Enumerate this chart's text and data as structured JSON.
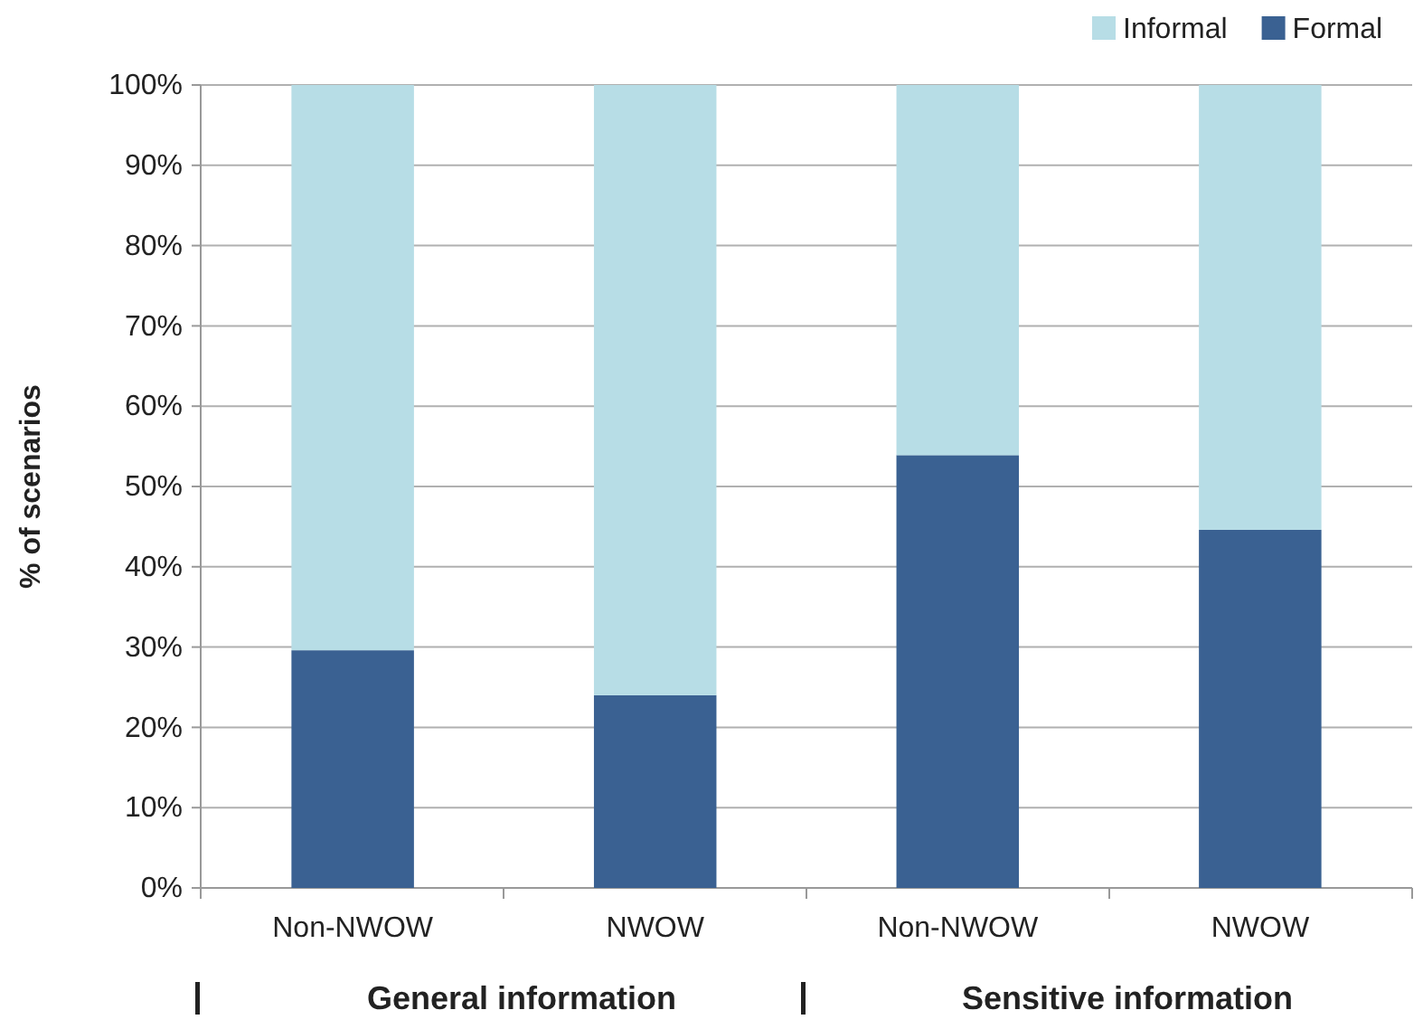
{
  "chart_data": {
    "type": "bar",
    "stacked": true,
    "ylabel": "% of scenarios",
    "categories": [
      "Non-NWOW",
      "NWOW",
      "Non-NWOW",
      "NWOW"
    ],
    "series": [
      {
        "name": "Formal",
        "color": "#3a6192",
        "values": [
          29.6,
          24.0,
          53.9,
          44.6
        ]
      },
      {
        "name": "Informal",
        "color": "#b7dde6",
        "values": [
          70.4,
          76.0,
          46.1,
          55.4
        ]
      }
    ],
    "ylim": [
      0,
      100
    ],
    "yticks": [
      {
        "value": 0,
        "label": "0%"
      },
      {
        "value": 10,
        "label": "10%"
      },
      {
        "value": 20,
        "label": "20%"
      },
      {
        "value": 30,
        "label": "30%"
      },
      {
        "value": 40,
        "label": "40%"
      },
      {
        "value": 50,
        "label": "50%"
      },
      {
        "value": 60,
        "label": "60%"
      },
      {
        "value": 70,
        "label": "70%"
      },
      {
        "value": 80,
        "label": "80%"
      },
      {
        "value": 90,
        "label": "90%"
      },
      {
        "value": 100,
        "label": "100%"
      }
    ],
    "grid": "y",
    "legend": "top right",
    "annotations": [
      "General information",
      "Sensitive information"
    ]
  }
}
